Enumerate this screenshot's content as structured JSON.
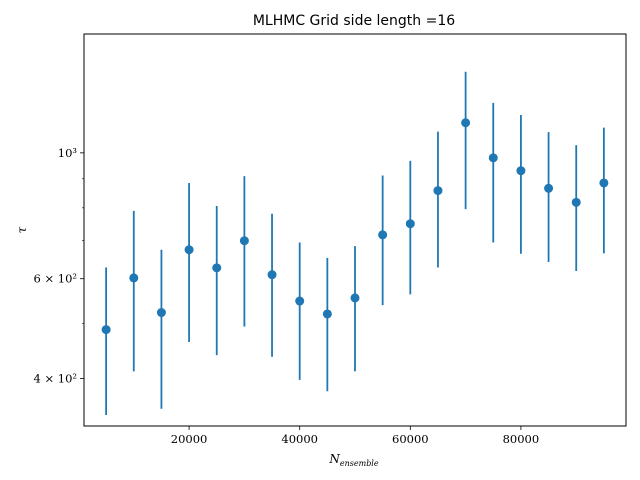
{
  "chart_data": {
    "type": "scatter",
    "title": "MLHMC Grid side length =16",
    "xlabel": "N",
    "xlabel_sub": "ensemble",
    "ylabel": "τ",
    "xlim": [
      1000,
      99000
    ],
    "ylim": [
      330,
      1620
    ],
    "yscale": "log",
    "x_ticks": [
      {
        "value": 20000,
        "label": "20000"
      },
      {
        "value": 40000,
        "label": "40000"
      },
      {
        "value": 60000,
        "label": "60000"
      },
      {
        "value": 80000,
        "label": "80000"
      }
    ],
    "y_major_ticks": [
      {
        "value": 400,
        "label": "4 × 10²"
      },
      {
        "value": 600,
        "label": "6 × 10²"
      },
      {
        "value": 1000,
        "label": "10³"
      }
    ],
    "y_minor_ticks": [
      500,
      700,
      800,
      900
    ],
    "color": "#1f77b4",
    "series": [
      {
        "x": [
          5000,
          10000,
          15000,
          20000,
          25000,
          30000,
          35000,
          40000,
          45000,
          50000,
          55000,
          60000,
          65000,
          70000,
          75000,
          80000,
          85000,
          90000,
          95000
        ],
        "y": [
          488,
          602,
          523,
          675,
          627,
          700,
          610,
          548,
          520,
          555,
          717,
          750,
          858,
          1130,
          980,
          930,
          866,
          818,
          885
        ],
        "yerr_low": [
          345,
          412,
          354,
          464,
          440,
          494,
          437,
          398,
          380,
          412,
          539,
          563,
          628,
          796,
          695,
          664,
          642,
          619,
          665
        ],
        "yerr_high": [
          628,
          790,
          675,
          885,
          806,
          910,
          781,
          695,
          653,
          685,
          912,
          968,
          1090,
          1390,
          1225,
          1166,
          1088,
          1032,
          1108
        ]
      }
    ]
  }
}
